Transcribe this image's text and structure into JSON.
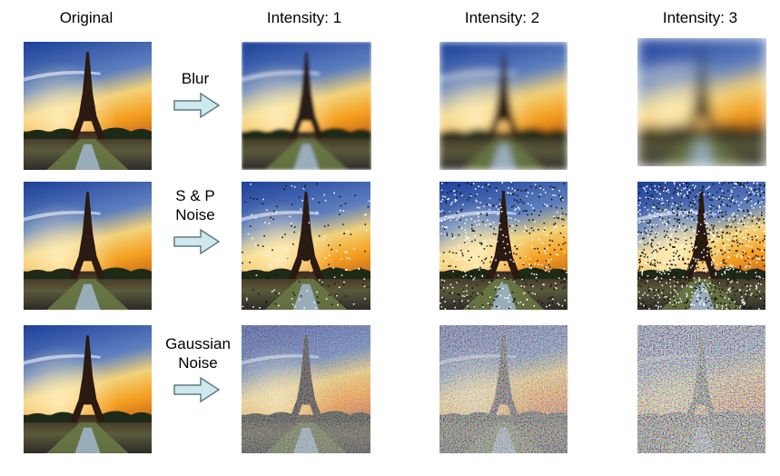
{
  "headers": {
    "original": "Original",
    "intensity_1": "Intensity: 1",
    "intensity_2": "Intensity: 2",
    "intensity_3": "Intensity: 3"
  },
  "rows": [
    {
      "label_lines": [
        "Blur"
      ]
    },
    {
      "label_lines": [
        "S & P",
        "Noise"
      ]
    },
    {
      "label_lines": [
        "Gaussian",
        "Noise"
      ]
    }
  ],
  "colors": {
    "arrow_fill": "#cfe8ee",
    "arrow_stroke": "#5f7c86",
    "sky_top": "#1d3f9a",
    "sky_horizon": "#f5a020",
    "tower": "#2b1a12"
  }
}
